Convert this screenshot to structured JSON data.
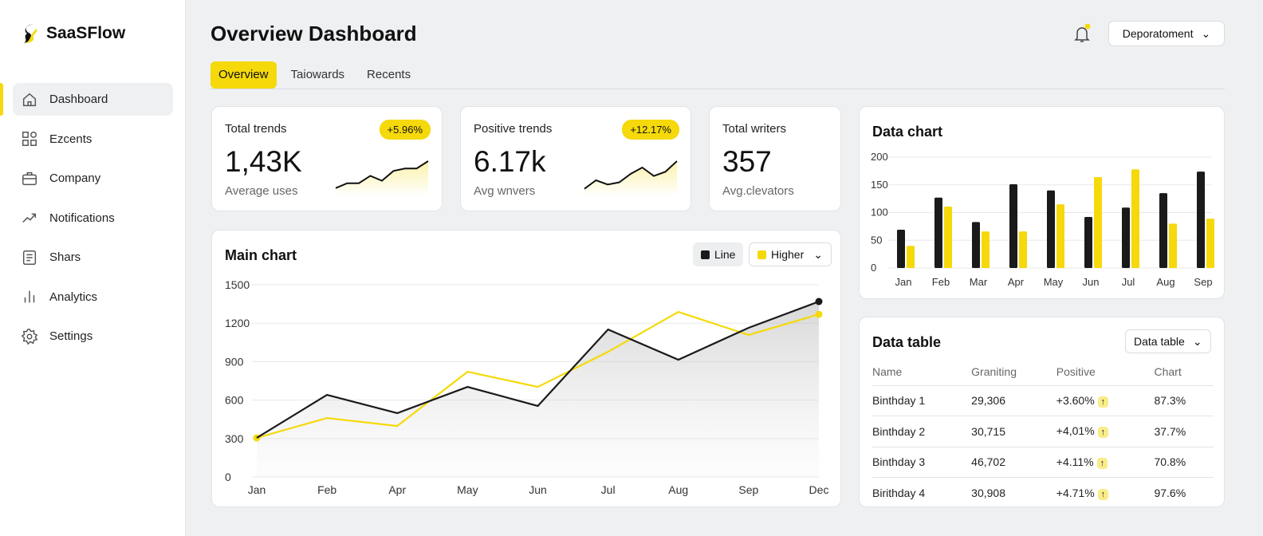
{
  "app": {
    "name": "SaaSFlow"
  },
  "sidebar": {
    "items": [
      {
        "label": "Dashboard",
        "icon": "home-icon"
      },
      {
        "label": "Ezcents",
        "icon": "grid-icon"
      },
      {
        "label": "Company",
        "icon": "briefcase-icon"
      },
      {
        "label": "Notifications",
        "icon": "trend-icon"
      },
      {
        "label": "Shars",
        "icon": "document-icon"
      },
      {
        "label": "Analytics",
        "icon": "bar-chart-icon"
      },
      {
        "label": "Settings",
        "icon": "gear-icon"
      }
    ]
  },
  "header": {
    "title": "Overview Dashboard",
    "department": "Deporatoment",
    "tabs": [
      "Overview",
      "Taiowards",
      "Recents"
    ]
  },
  "kpis": [
    {
      "label": "Total trends",
      "value": "1,43K",
      "sub": "Average uses",
      "badge": "+5.96%",
      "spark": [
        2,
        4,
        4,
        7,
        5,
        9,
        10,
        10,
        13
      ]
    },
    {
      "label": "Positive trends",
      "value": "6.17k",
      "sub": "Avg wnvers",
      "badge": "+12.17%",
      "spark": [
        2,
        6,
        4,
        5,
        9,
        12,
        8,
        10,
        15
      ]
    },
    {
      "label": "Total writers",
      "value": "357",
      "sub": "Avg.clevators"
    }
  ],
  "colors": {
    "accent": "#f5d90a",
    "dark": "#1a1a1a"
  },
  "chart_data": [
    {
      "type": "line",
      "title": "Main chart",
      "categories": [
        "Jan",
        "Feb",
        "Apr",
        "May",
        "Jun",
        "Jul",
        "Aug",
        "Sep",
        "Dec"
      ],
      "ylim": [
        0,
        1500
      ],
      "yticks": [
        0,
        300,
        600,
        900,
        1200,
        1500
      ],
      "grid": true,
      "legend": {
        "line_label": "Line",
        "select_label": "Higher"
      },
      "series": [
        {
          "name": "Line",
          "color": "#1a1a1a",
          "values": [
            305,
            641,
            498,
            703,
            554,
            1151,
            915,
            1164,
            1369
          ]
        },
        {
          "name": "Higher",
          "color": "#f5d90a",
          "values": [
            305,
            460,
            398,
            821,
            703,
            977,
            1288,
            1108,
            1269
          ]
        }
      ]
    },
    {
      "type": "bar",
      "title": "Data chart",
      "categories": [
        "Jan",
        "Feb",
        "Mar",
        "Apr",
        "May",
        "Jun",
        "Jul",
        "Aug",
        "Sep"
      ],
      "ylim": [
        0,
        200
      ],
      "yticks": [
        0,
        50,
        100,
        150,
        200
      ],
      "grid": true,
      "series": [
        {
          "color": "#1a1a1a",
          "values": [
            69,
            127,
            83,
            151,
            140,
            92,
            109,
            135,
            174
          ]
        },
        {
          "color": "#f5d90a",
          "values": [
            40,
            111,
            66,
            66,
            115,
            164,
            178,
            80,
            89
          ]
        }
      ]
    }
  ],
  "table": {
    "title": "Data table",
    "select": "Data table",
    "columns": [
      "Name",
      "Graniting",
      "Positive",
      "Chart"
    ],
    "rows": [
      [
        "Binthday 1",
        "29,306",
        "+3.60%",
        "87.3%"
      ],
      [
        "Binthday 2",
        "30,715",
        "+4,01%",
        "37.7%"
      ],
      [
        "Binthday 3",
        "46,702",
        "+4.11%",
        "70.8%"
      ],
      [
        "Birithday 4",
        "30,908",
        "+4.71%",
        "97.6%"
      ]
    ]
  }
}
